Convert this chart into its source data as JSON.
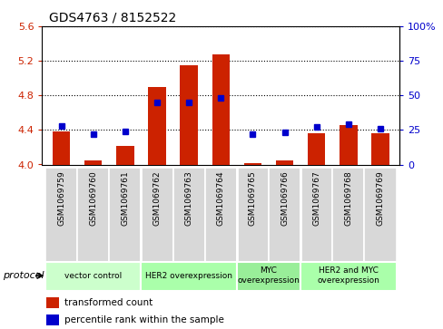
{
  "title": "GDS4763 / 8152522",
  "samples": [
    "GSM1069759",
    "GSM1069760",
    "GSM1069761",
    "GSM1069762",
    "GSM1069763",
    "GSM1069764",
    "GSM1069765",
    "GSM1069766",
    "GSM1069767",
    "GSM1069768",
    "GSM1069769"
  ],
  "bar_values": [
    4.38,
    4.05,
    4.22,
    4.9,
    5.15,
    5.27,
    4.02,
    4.05,
    4.36,
    4.46,
    4.36
  ],
  "dot_percentiles": [
    28,
    22,
    24,
    45,
    45,
    48,
    22,
    23,
    27,
    29,
    26
  ],
  "bar_base": 4.0,
  "ylim_left": [
    4.0,
    5.6
  ],
  "ylim_right": [
    0,
    100
  ],
  "yticks_left": [
    4.0,
    4.4,
    4.8,
    5.2,
    5.6
  ],
  "yticks_right": [
    0,
    25,
    50,
    75,
    100
  ],
  "ytick_labels_right": [
    "0",
    "25",
    "50",
    "75",
    "100%"
  ],
  "bar_color": "#CC2200",
  "dot_color": "#0000CC",
  "tick_label_color_left": "#CC2200",
  "tick_label_color_right": "#0000CC",
  "sample_box_color": "#D8D8D8",
  "protocol_groups": [
    {
      "label": "vector control",
      "start": 0,
      "end": 2,
      "color": "#CCFFCC"
    },
    {
      "label": "HER2 overexpression",
      "start": 3,
      "end": 5,
      "color": "#AAFFAA"
    },
    {
      "label": "MYC\noverexpression",
      "start": 6,
      "end": 7,
      "color": "#99EE99"
    },
    {
      "label": "HER2 and MYC\noverexpression",
      "start": 8,
      "end": 10,
      "color": "#AAFFAA"
    }
  ],
  "legend_bar_label": "transformed count",
  "legend_dot_label": "percentile rank within the sample",
  "xlabel_protocol": "protocol"
}
